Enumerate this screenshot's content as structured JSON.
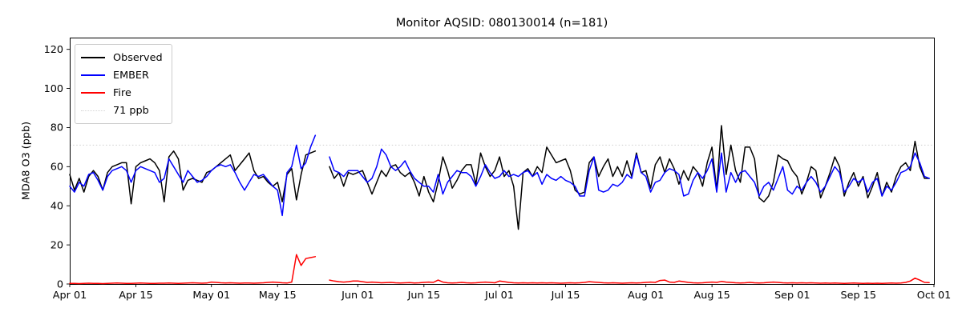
{
  "chart_data": {
    "type": "line",
    "title": "Monitor AQSID: 080130014 (n=181)",
    "xlabel": "",
    "ylabel": "MDA8 O3 (ppb)",
    "ylim": [
      0,
      126
    ],
    "yticks": [
      0,
      20,
      40,
      60,
      80,
      100,
      120
    ],
    "n_days": 183,
    "grid": false,
    "xticks": [
      {
        "label": "Apr 01",
        "day": 0
      },
      {
        "label": "Apr 15",
        "day": 14
      },
      {
        "label": "May 01",
        "day": 30
      },
      {
        "label": "May 15",
        "day": 44
      },
      {
        "label": "Jun 01",
        "day": 61
      },
      {
        "label": "Jun 15",
        "day": 75
      },
      {
        "label": "Jul 01",
        "day": 91
      },
      {
        "label": "Jul 15",
        "day": 105
      },
      {
        "label": "Aug 01",
        "day": 122
      },
      {
        "label": "Aug 15",
        "day": 136
      },
      {
        "label": "Sep 01",
        "day": 153
      },
      {
        "label": "Sep 15",
        "day": 167
      },
      {
        "label": "Oct 01",
        "day": 183
      }
    ],
    "threshold": {
      "label": "71 ppb",
      "value": 71,
      "color": "#d3d3d3",
      "style": "dotted"
    },
    "legend": {
      "position": "upper-left",
      "entries": [
        {
          "label": "Observed",
          "color": "#000000",
          "style": "solid"
        },
        {
          "label": "EMBER",
          "color": "#0000ff",
          "style": "solid"
        },
        {
          "label": "Fire",
          "color": "#ff0000",
          "style": "solid"
        },
        {
          "label": "71 ppb",
          "color": "#d3d3d3",
          "style": "dotted"
        }
      ]
    },
    "series": [
      {
        "name": "Observed",
        "color": "#000000",
        "values": [
          56,
          48,
          54,
          47,
          55,
          58,
          55,
          48,
          57,
          60,
          61,
          62,
          62,
          41,
          60,
          62,
          63,
          64,
          62,
          58,
          42,
          65,
          68,
          64,
          48,
          53,
          54,
          53,
          52,
          57,
          58,
          60,
          62,
          64,
          66,
          58,
          61,
          64,
          67,
          58,
          54,
          55,
          52,
          50,
          52,
          42,
          56,
          59,
          43,
          56,
          66,
          67,
          68,
          null,
          null,
          60,
          54,
          57,
          50,
          57,
          56,
          57,
          58,
          52,
          46,
          52,
          58,
          55,
          60,
          61,
          57,
          55,
          57,
          52,
          45,
          55,
          47,
          42,
          52,
          65,
          58,
          49,
          53,
          58,
          61,
          61,
          51,
          67,
          60,
          55,
          58,
          65,
          55,
          58,
          50,
          28,
          57,
          59,
          55,
          60,
          57,
          70,
          66,
          62,
          63,
          64,
          58,
          48,
          46,
          47,
          62,
          65,
          55,
          60,
          64,
          55,
          60,
          55,
          63,
          55,
          67,
          57,
          58,
          49,
          61,
          65,
          57,
          64,
          59,
          51,
          58,
          53,
          60,
          57,
          50,
          62,
          70,
          48,
          81,
          56,
          71,
          58,
          52,
          70,
          70,
          64,
          44,
          42,
          45,
          52,
          66,
          64,
          63,
          58,
          55,
          46,
          52,
          60,
          58,
          44,
          50,
          57,
          65,
          60,
          45,
          52,
          57,
          50,
          55,
          44,
          50,
          57,
          45,
          52,
          47,
          55,
          60,
          62,
          58,
          73,
          60,
          54,
          54
        ]
      },
      {
        "name": "EMBER",
        "color": "#0000ff",
        "values": [
          50,
          47,
          52,
          50,
          56,
          57,
          53,
          48,
          55,
          58,
          59,
          60,
          58,
          52,
          58,
          60,
          59,
          58,
          57,
          52,
          54,
          64,
          60,
          56,
          52,
          58,
          55,
          52,
          53,
          55,
          58,
          60,
          61,
          60,
          61,
          57,
          52,
          48,
          52,
          56,
          55,
          56,
          53,
          50,
          48,
          35,
          57,
          60,
          71,
          59,
          62,
          70,
          76,
          null,
          null,
          65,
          58,
          57,
          55,
          58,
          58,
          58,
          55,
          52,
          54,
          60,
          69,
          66,
          60,
          58,
          60,
          63,
          58,
          54,
          52,
          50,
          50,
          47,
          56,
          46,
          52,
          55,
          58,
          57,
          57,
          55,
          50,
          55,
          61,
          57,
          54,
          55,
          58,
          55,
          56,
          55,
          57,
          58,
          55,
          57,
          51,
          56,
          54,
          53,
          55,
          53,
          52,
          50,
          45,
          45,
          58,
          65,
          48,
          47,
          48,
          51,
          50,
          52,
          56,
          54,
          66,
          57,
          55,
          47,
          52,
          53,
          57,
          59,
          58,
          56,
          45,
          46,
          53,
          57,
          54,
          58,
          64,
          47,
          67,
          47,
          57,
          52,
          57,
          58,
          55,
          52,
          45,
          50,
          52,
          48,
          54,
          60,
          48,
          46,
          50,
          48,
          52,
          55,
          52,
          47,
          50,
          55,
          60,
          57,
          47,
          50,
          54,
          52,
          54,
          47,
          52,
          54,
          45,
          50,
          48,
          52,
          57,
          58,
          60,
          67,
          62,
          55,
          54
        ]
      },
      {
        "name": "Fire",
        "color": "#ff0000",
        "values": [
          0.3,
          0.3,
          0.2,
          0.3,
          0.4,
          0.3,
          0.3,
          0.2,
          0.3,
          0.4,
          0.5,
          0.4,
          0.3,
          0.3,
          0.4,
          0.5,
          0.4,
          0.3,
          0.3,
          0.4,
          0.4,
          0.5,
          0.4,
          0.3,
          0.4,
          0.5,
          0.6,
          0.5,
          0.4,
          0.5,
          1.0,
          0.8,
          0.6,
          0.5,
          0.6,
          0.5,
          0.4,
          0.5,
          0.5,
          0.4,
          0.5,
          0.6,
          0.8,
          1.0,
          0.8,
          0.6,
          0.5,
          1.0,
          15.0,
          9.5,
          13.0,
          13.5,
          14.0,
          null,
          null,
          2.0,
          1.5,
          1.2,
          1.0,
          1.2,
          1.5,
          1.5,
          1.2,
          0.8,
          1.0,
          0.8,
          0.6,
          0.7,
          0.8,
          0.6,
          0.5,
          0.6,
          0.7,
          0.5,
          0.6,
          0.8,
          1.0,
          0.8,
          2.0,
          1.0,
          0.6,
          0.5,
          0.6,
          0.8,
          0.6,
          0.5,
          0.6,
          0.8,
          1.0,
          0.8,
          0.6,
          1.5,
          1.2,
          0.8,
          0.6,
          0.5,
          0.6,
          0.5,
          0.6,
          0.5,
          0.6,
          0.5,
          0.6,
          0.5,
          0.4,
          0.5,
          0.6,
          0.5,
          0.6,
          0.8,
          1.2,
          1.0,
          0.8,
          0.6,
          0.5,
          0.6,
          0.5,
          0.4,
          0.5,
          0.6,
          0.5,
          0.6,
          0.8,
          1.0,
          0.8,
          1.8,
          2.0,
          1.0,
          0.8,
          1.5,
          1.2,
          0.8,
          0.6,
          0.5,
          0.6,
          0.8,
          1.0,
          0.8,
          1.3,
          1.0,
          0.8,
          0.6,
          0.5,
          0.6,
          0.8,
          0.6,
          0.5,
          0.6,
          0.8,
          1.0,
          0.8,
          0.6,
          0.5,
          0.6,
          0.5,
          0.6,
          0.5,
          0.6,
          0.5,
          0.4,
          0.5,
          0.4,
          0.5,
          0.4,
          0.3,
          0.4,
          0.5,
          0.4,
          0.3,
          0.4,
          0.3,
          0.4,
          0.3,
          0.4,
          0.5,
          0.4,
          0.5,
          0.8,
          1.5,
          3.0,
          2.0,
          0.8,
          0.7
        ]
      }
    ]
  }
}
